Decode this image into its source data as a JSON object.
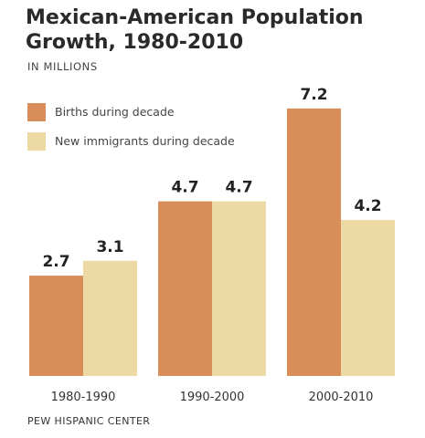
{
  "chart_data": {
    "type": "bar",
    "title": "Mexican-American Population Growth, 1980-2010",
    "subtitle": "IN MILLIONS",
    "categories": [
      "1980-1990",
      "1990-2000",
      "2000-2010"
    ],
    "series": [
      {
        "name": "Births during decade",
        "values": [
          2.7,
          4.7,
          7.2
        ],
        "color": "#d98e5a"
      },
      {
        "name": "New immigrants during decade",
        "values": [
          3.1,
          4.7,
          4.2
        ],
        "color": "#ecd9a4"
      }
    ],
    "value_labels": [
      "2.7",
      "4.7",
      "7.2",
      "3.1",
      "4.7",
      "4.2"
    ],
    "ylim": [
      0,
      8.4
    ],
    "legend_position": "top-left",
    "grid": false,
    "source": "PEW HISPANIC CENTER"
  }
}
